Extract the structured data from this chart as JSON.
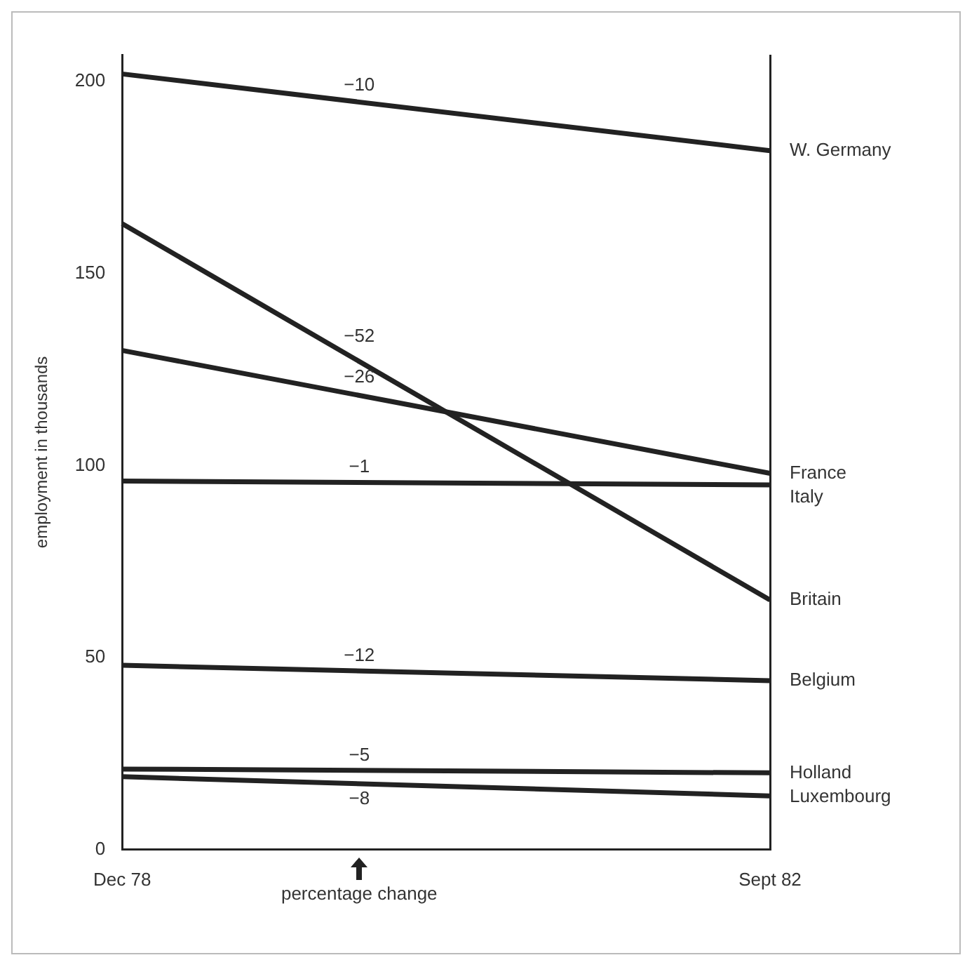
{
  "chart_data": {
    "type": "line",
    "ylabel": "employment in thousands",
    "categories": [
      "Dec 78",
      "Sept 82"
    ],
    "series": [
      {
        "name": "W. Germany",
        "color": "#222222",
        "values": [
          202,
          182
        ]
      },
      {
        "name": "Britain",
        "color": "#222222",
        "values": [
          163,
          65
        ]
      },
      {
        "name": "France",
        "color": "#222222",
        "values": [
          130,
          98
        ]
      },
      {
        "name": "Italy",
        "color": "#222222",
        "values": [
          96,
          95
        ]
      },
      {
        "name": "Belgium",
        "color": "#222222",
        "values": [
          48,
          44
        ]
      },
      {
        "name": "Holland",
        "color": "#222222",
        "values": [
          21,
          20
        ]
      },
      {
        "name": "Luxembourg",
        "color": "#222222",
        "values": [
          19,
          14
        ]
      }
    ],
    "ylim": [
      0,
      207
    ],
    "yticks": [
      0,
      50,
      100,
      150,
      200
    ],
    "grid": "x",
    "legend": false,
    "marker": "none",
    "line_style": "solid",
    "annotations": [
      "−10",
      "−52",
      "−26",
      "−1",
      "−12",
      "−5",
      "−8",
      "percentage change"
    ]
  }
}
